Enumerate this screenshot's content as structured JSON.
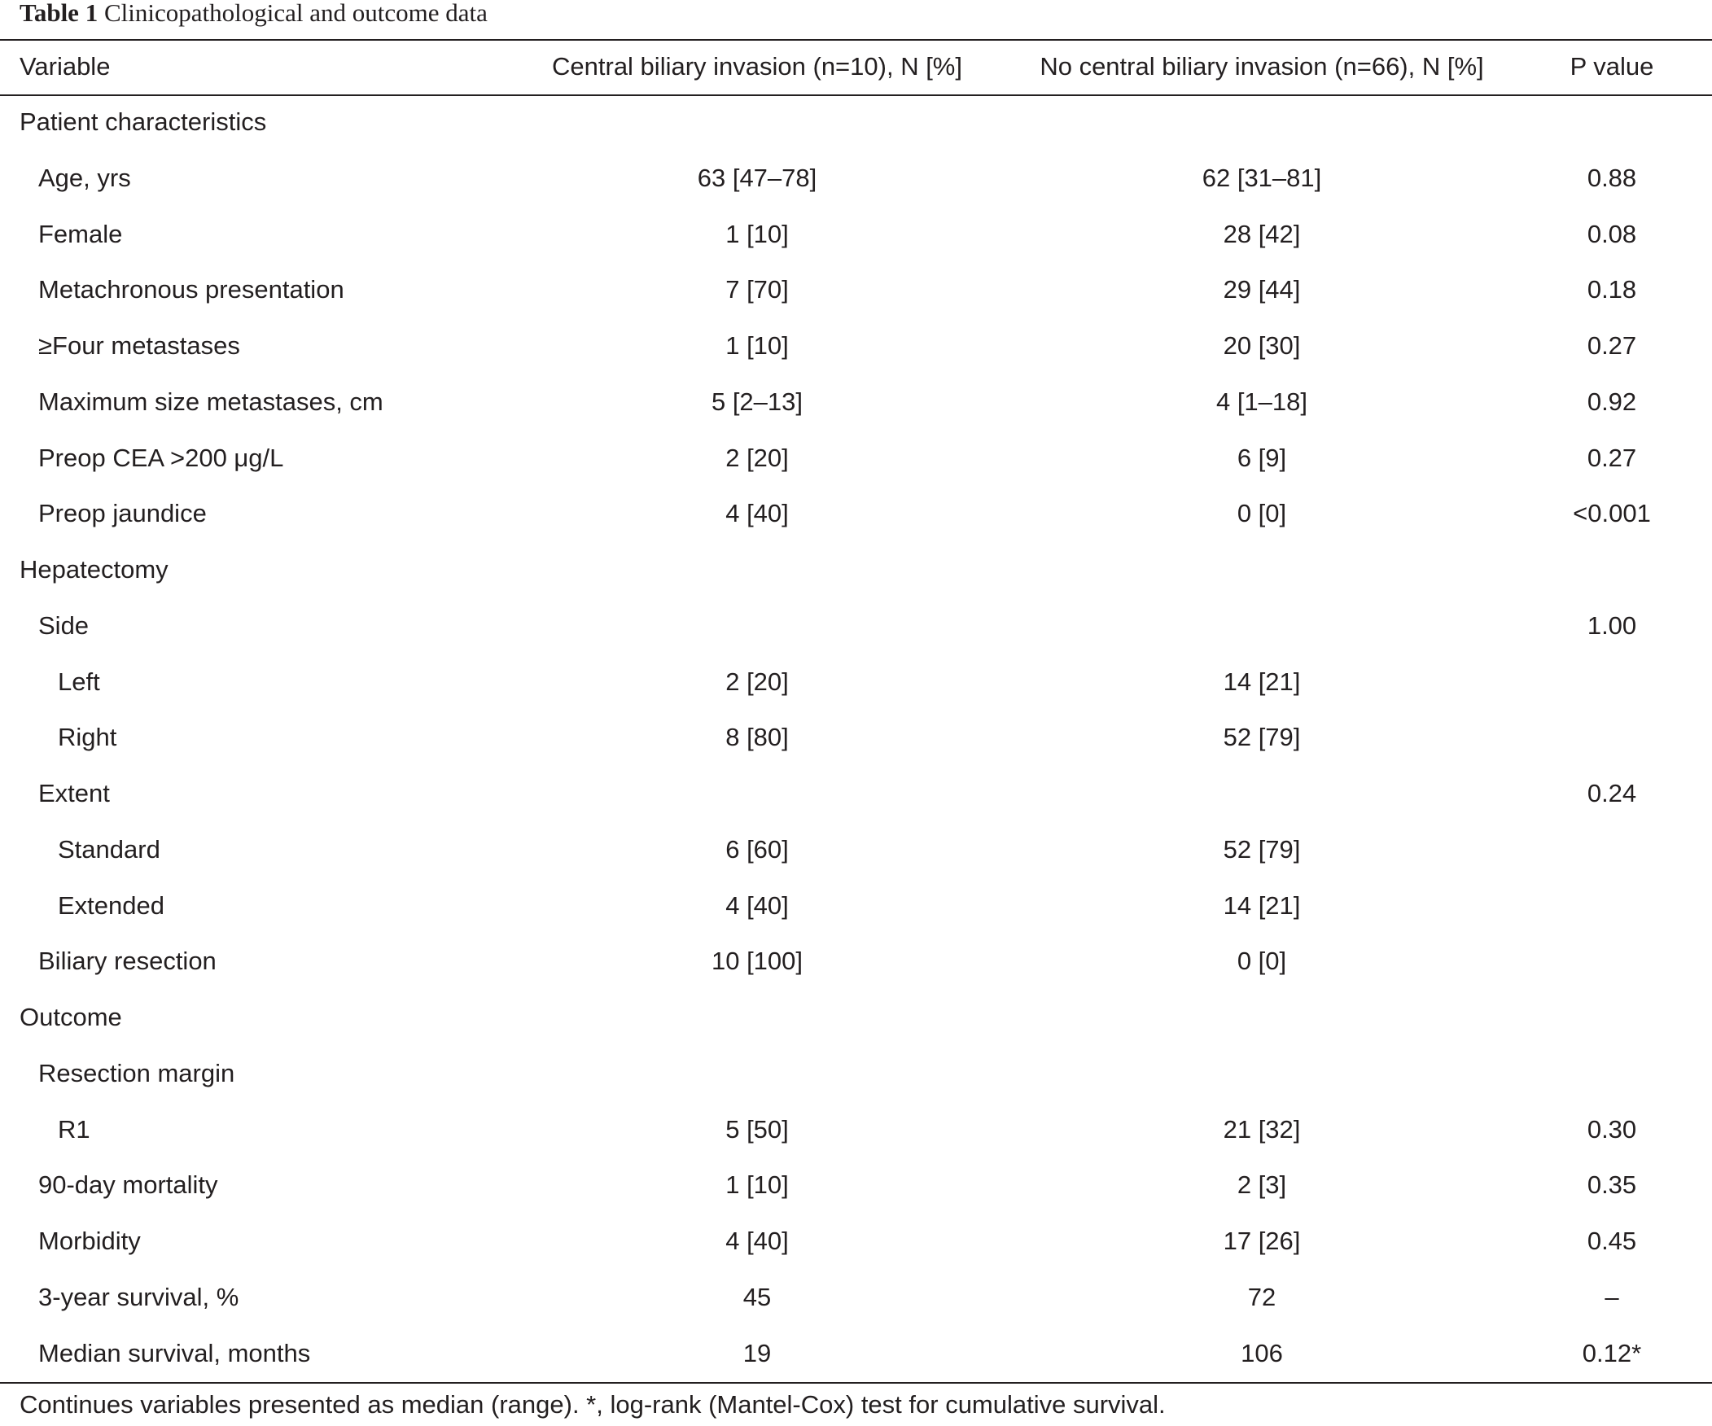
{
  "caption": {
    "label": "Table 1",
    "text": "Clinicopathological and outcome data"
  },
  "header": {
    "variable": "Variable",
    "col1": "Central biliary invasion (n=10), N [%]",
    "col2": "No central biliary invasion (n=66), N [%]",
    "col3": "P value"
  },
  "rows": [
    {
      "label": "Patient characteristics",
      "c1": "",
      "c2": "",
      "p": ""
    },
    {
      "label": "Age, yrs",
      "c1": "63 [47–78]",
      "c2": "62 [31–81]",
      "p": "0.88"
    },
    {
      "label": "Female",
      "c1": "1 [10]",
      "c2": "28 [42]",
      "p": "0.08"
    },
    {
      "label": "Metachronous presentation",
      "c1": "7 [70]",
      "c2": "29 [44]",
      "p": "0.18"
    },
    {
      "label": "≥Four metastases",
      "c1": "1 [10]",
      "c2": "20 [30]",
      "p": "0.27"
    },
    {
      "label": "Maximum size metastases, cm",
      "c1": "5 [2–13]",
      "c2": "4 [1–18]",
      "p": "0.92"
    },
    {
      "label": "Preop CEA >200 μg/L",
      "c1": "2 [20]",
      "c2": "6 [9]",
      "p": "0.27"
    },
    {
      "label": "Preop jaundice",
      "c1": "4 [40]",
      "c2": "0 [0]",
      "p": "<0.001"
    },
    {
      "label": "Hepatectomy",
      "c1": "",
      "c2": "",
      "p": ""
    },
    {
      "label": "Side",
      "c1": "",
      "c2": "",
      "p": "1.00"
    },
    {
      "label": "Left",
      "c1": "2 [20]",
      "c2": "14 [21]",
      "p": ""
    },
    {
      "label": "Right",
      "c1": "8 [80]",
      "c2": "52 [79]",
      "p": ""
    },
    {
      "label": "Extent",
      "c1": "",
      "c2": "",
      "p": "0.24"
    },
    {
      "label": "Standard",
      "c1": "6 [60]",
      "c2": "52 [79]",
      "p": ""
    },
    {
      "label": "Extended",
      "c1": "4 [40]",
      "c2": "14 [21]",
      "p": ""
    },
    {
      "label": "Biliary resection",
      "c1": "10 [100]",
      "c2": "0 [0]",
      "p": ""
    },
    {
      "label": "Outcome",
      "c1": "",
      "c2": "",
      "p": ""
    },
    {
      "label": "Resection margin",
      "c1": "",
      "c2": "",
      "p": ""
    },
    {
      "label": "R1",
      "c1": "5 [50]",
      "c2": "21 [32]",
      "p": "0.30"
    },
    {
      "label": "90-day mortality",
      "c1": "1 [10]",
      "c2": "2 [3]",
      "p": "0.35"
    },
    {
      "label": "Morbidity",
      "c1": "4 [40]",
      "c2": "17 [26]",
      "p": "0.45"
    },
    {
      "label": "3-year survival, %",
      "c1": "45",
      "c2": "72",
      "p": "–"
    },
    {
      "label": "Median survival, months",
      "c1": "19",
      "c2": "106",
      "p": "0.12*"
    }
  ],
  "footnote": "Continues variables presented as median (range). *, log-rank (Mantel-Cox) test for cumulative survival."
}
